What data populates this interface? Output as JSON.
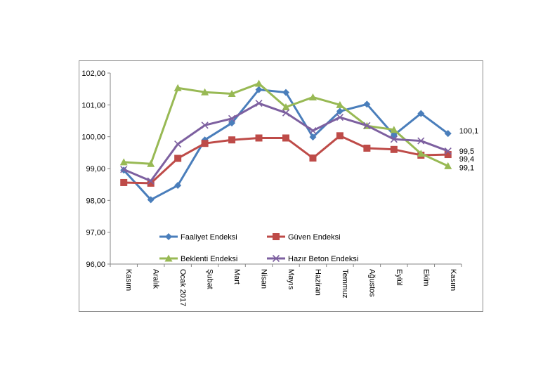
{
  "chart_data": {
    "type": "line",
    "title": "",
    "xlabel": "",
    "ylabel": "",
    "categories": [
      "Kasım",
      "Aralık",
      "Ocak 2017",
      "Şubat",
      "Mart",
      "Nisan",
      "Mayıs",
      "Haziran",
      "Temmuz",
      "Ağustos",
      "Eylül",
      "Ekim",
      "Kasım"
    ],
    "ylim": [
      96,
      102
    ],
    "yticks": [
      "96,00",
      "97,00",
      "98,00",
      "99,00",
      "100,00",
      "101,00",
      "102,00"
    ],
    "grid": false,
    "legend_position": "bottom-inside",
    "series": [
      {
        "name": "Faaliyet Endeksi",
        "color": "#4a7ebb",
        "marker": "diamond",
        "values": [
          98.95,
          98.02,
          98.47,
          99.9,
          100.43,
          101.48,
          101.39,
          99.99,
          100.8,
          101.02,
          100.05,
          100.73,
          100.1
        ]
      },
      {
        "name": "Güven Endeksi",
        "color": "#be4b48",
        "marker": "square",
        "values": [
          98.56,
          98.54,
          99.32,
          99.79,
          99.9,
          99.96,
          99.96,
          99.33,
          100.03,
          99.64,
          99.6,
          99.42,
          99.44
        ]
      },
      {
        "name": "Beklenti Endeksi",
        "color": "#98b954",
        "marker": "triangle",
        "values": [
          99.2,
          99.15,
          101.53,
          101.4,
          101.35,
          101.67,
          100.93,
          101.24,
          101.0,
          100.34,
          100.22,
          99.47,
          99.08
        ]
      },
      {
        "name": "Hazır Beton Endeksi",
        "color": "#7d60a0",
        "marker": "x",
        "values": [
          98.97,
          98.61,
          99.77,
          100.36,
          100.57,
          101.05,
          100.75,
          100.19,
          100.61,
          100.35,
          99.92,
          99.87,
          99.55
        ]
      }
    ],
    "annotations": [
      {
        "series": 0,
        "text": "100,1"
      },
      {
        "series": 3,
        "text": "99,5"
      },
      {
        "series": 1,
        "text": "99,4"
      },
      {
        "series": 2,
        "text": "99,1"
      }
    ]
  }
}
